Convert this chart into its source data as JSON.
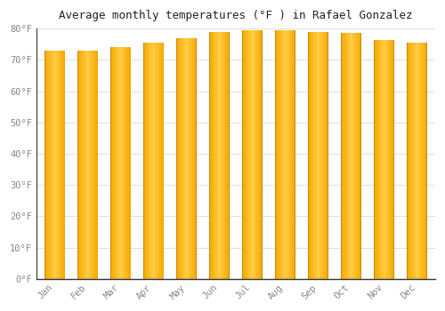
{
  "title": "Average monthly temperatures (°F ) in Rafael Gonzalez",
  "months": [
    "Jan",
    "Feb",
    "Mar",
    "Apr",
    "May",
    "Jun",
    "Jul",
    "Aug",
    "Sep",
    "Oct",
    "Nov",
    "Dec"
  ],
  "temperatures": [
    73,
    73,
    74,
    75.5,
    77,
    79,
    79.5,
    79.5,
    79,
    78.5,
    76.5,
    75.5
  ],
  "bar_color_center": "#FFCC44",
  "bar_color_edge": "#F5A800",
  "bar_color_dark_edge": "#CC8800",
  "ylim": [
    0,
    80
  ],
  "yticks": [
    0,
    10,
    20,
    30,
    40,
    50,
    60,
    70,
    80
  ],
  "ytick_labels": [
    "0°F",
    "10°F",
    "20°F",
    "30°F",
    "40°F",
    "50°F",
    "60°F",
    "70°F",
    "80°F"
  ],
  "background_color": "#ffffff",
  "plot_bg_color": "#ffffff",
  "grid_color": "#e0e0e0",
  "title_fontsize": 9,
  "tick_fontsize": 7.5,
  "tick_color": "#888888",
  "spine_color": "#333333"
}
